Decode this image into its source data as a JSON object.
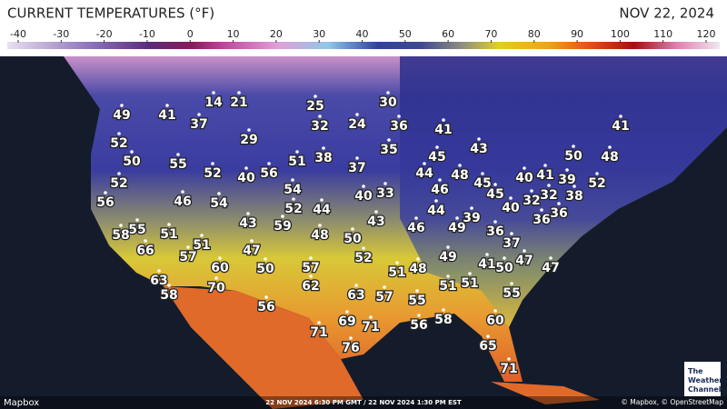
{
  "header": {
    "title": "CURRENT TEMPERATURES (°F)",
    "date": "NOV 22, 2024"
  },
  "scale": {
    "ticks": [
      -40,
      -30,
      -20,
      -10,
      0,
      10,
      20,
      30,
      40,
      50,
      60,
      70,
      80,
      90,
      100,
      110,
      120
    ]
  },
  "temperatures": [
    14,
    21,
    49,
    41,
    37,
    25,
    30,
    32,
    24,
    36,
    41,
    52,
    29,
    43,
    41,
    50,
    55,
    52,
    40,
    56,
    51,
    38,
    37,
    35,
    44,
    45,
    48,
    45,
    40,
    41,
    39,
    50,
    48,
    52,
    56,
    46,
    54,
    54,
    40,
    33,
    46,
    45,
    32,
    32,
    38,
    52,
    52,
    44,
    44,
    40,
    36,
    36,
    55,
    58,
    51,
    43,
    59,
    48,
    43,
    46,
    39,
    49,
    36,
    50,
    66,
    51,
    57,
    47,
    37,
    52,
    49,
    60,
    50,
    57,
    41,
    50,
    47,
    47,
    51,
    48,
    63,
    58,
    70,
    62,
    63,
    57,
    51,
    51,
    55,
    55,
    56,
    71,
    69,
    71,
    56,
    58,
    60,
    76,
    65,
    71
  ],
  "footer": {
    "attribution_left": "Mapbox",
    "timestamp": "22 NOV 2024 6:30 PM GMT / 22 NOV 2024 1:30 PM EST",
    "attribution_right": "© Mapbox, © OpenStreetMap",
    "logo": [
      "The",
      "Weather",
      "Channel"
    ]
  }
}
